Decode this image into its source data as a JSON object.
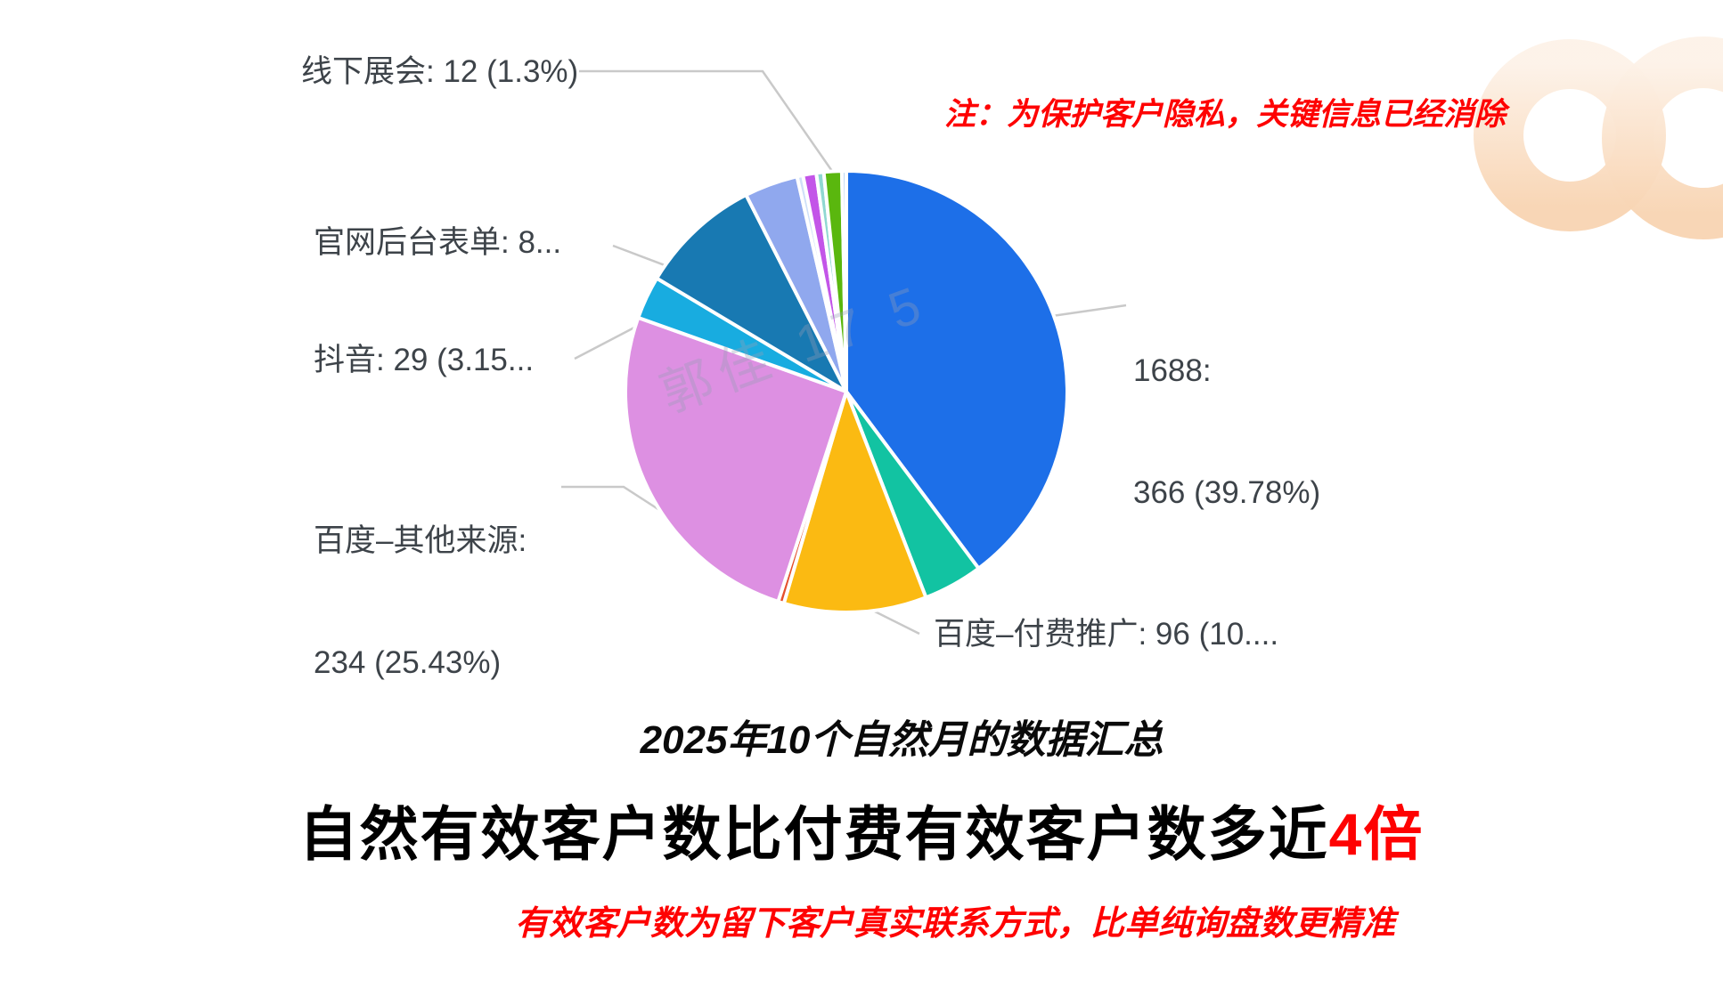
{
  "page": {
    "background": "#ffffff",
    "accent_red": "#fe0202"
  },
  "note_top": {
    "text": "注：为保护客户隐私，关键信息已经消除",
    "color": "#fe0202"
  },
  "watermark": {
    "text": "郭佳 17 5"
  },
  "chart_data": {
    "type": "pie",
    "total": 920,
    "start_angle_deg": -90,
    "direction": "clockwise",
    "legend_position": "none",
    "slices": [
      {
        "id": "slice-1688",
        "label": "1688",
        "value": 366,
        "percent": 39.78,
        "color": "#1d6fe8",
        "callout": "1688: 366 (39.78%)"
      },
      {
        "id": "slice-teal",
        "label": "",
        "value": 40,
        "color": "#12c3a2"
      },
      {
        "id": "slice-baidu-paid",
        "label": "百度–付费推广",
        "value": 96,
        "percent": 10.43,
        "color": "#fbba12",
        "callout": "百度–付费推广: 96 (10...."
      },
      {
        "id": "slice-red-sliver",
        "label": "",
        "value": 4,
        "color": "#e4502e"
      },
      {
        "id": "slice-baidu-other",
        "label": "百度–其他来源",
        "value": 234,
        "percent": 25.43,
        "color": "#dd90e2",
        "callout": "百度–其他来源: 234 (25.43%)"
      },
      {
        "id": "slice-douyin",
        "label": "抖音",
        "value": 29,
        "percent": 3.15,
        "color": "#18ace0",
        "callout": "抖音: 29 (3.15..."
      },
      {
        "id": "slice-website-form",
        "label": "官网后台表单",
        "value": 82,
        "color": "#1879b2",
        "callout": "官网后台表单: 8..."
      },
      {
        "id": "slice-periwinkle",
        "label": "",
        "value": 36,
        "color": "#90a8ee"
      },
      {
        "id": "slice-sliver-light",
        "label": "",
        "value": 4,
        "color": "#cfe0f8"
      },
      {
        "id": "slice-magenta",
        "label": "",
        "value": 9,
        "color": "#c355e8"
      },
      {
        "id": "slice-sliver-teal",
        "label": "",
        "value": 5,
        "color": "#8fd8d2"
      },
      {
        "id": "slice-offline-expo",
        "label": "线下展会",
        "value": 12,
        "percent": 1.3,
        "color": "#5ab70e",
        "callout": "线下展会: 12 (1.3%)"
      },
      {
        "id": "slice-hairline",
        "label": "",
        "value": 3,
        "color": "#bcd6f2"
      }
    ]
  },
  "callouts": {
    "offline": "线下展会: 12 (1.3%)",
    "website": "官网后台表单: 8...",
    "douyin": "抖音: 29 (3.15...",
    "baidu_other_line1": "百度–其他来源:",
    "baidu_other_line2": "234 (25.43%)",
    "n1688_line1": "1688:",
    "n1688_line2": "366 (39.78%)",
    "baidu_paid": "百度–付费推广: 96 (10...."
  },
  "caption": {
    "text": "2025年10个自然月的数据汇总"
  },
  "headline": {
    "text_black": "自然有效客户数比付费有效客户数多近",
    "text_red": "4倍",
    "red_color": "#fe0202"
  },
  "footnote": {
    "text": "有效客户数为留下客户真实联系方式，比单纯询盘数更精准",
    "color": "#fe0202"
  }
}
